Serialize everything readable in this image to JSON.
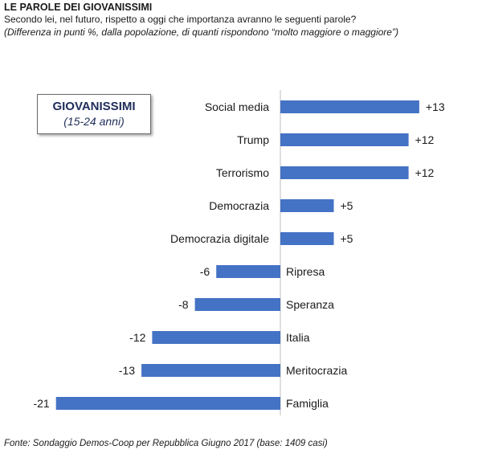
{
  "header": {
    "title": "LE PAROLE DEI GIOVANISSIMI",
    "question": "Secondo lei, nel futuro, rispetto a oggi che importanza avranno le seguenti parole?",
    "note": "(Differenza  in punti %, dalla popolazione,  di quanti rispondono  “molto maggiore o maggiore”)"
  },
  "legend": {
    "label": "GIOVANISSIMI",
    "sublabel": "(15-24 anni)"
  },
  "footer": {
    "source": "Fonte: Sondaggio Demos-Coop per Repubblica Giugno 2017 (base: 1409 casi)"
  },
  "chart_data": {
    "type": "bar",
    "orientation": "horizontal",
    "categories": [
      "Social media",
      "Trump",
      "Terrorismo",
      "Democrazia",
      "Democrazia digitale",
      "Ripresa",
      "Speranza",
      "Italia",
      "Meritocrazia",
      "Famiglia"
    ],
    "values": [
      13,
      12,
      12,
      5,
      5,
      -6,
      -8,
      -12,
      -13,
      -21
    ],
    "value_labels": [
      "+13",
      "+12",
      "+12",
      "+5",
      "+5",
      "-6",
      "-8",
      "-12",
      "-13",
      "-21"
    ],
    "bar_color": "#4472c4",
    "xlim": [
      -21,
      13
    ]
  }
}
